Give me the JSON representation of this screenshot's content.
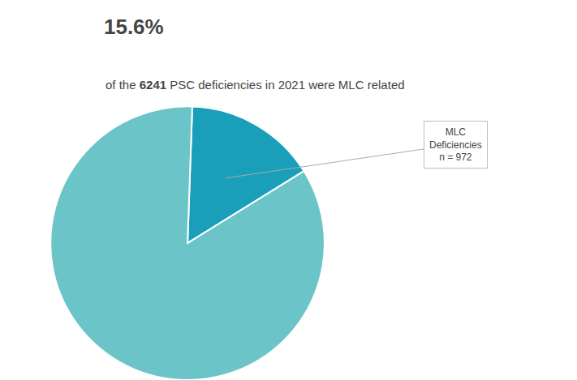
{
  "chart_data": {
    "type": "pie",
    "title": "15.6%",
    "subtitle": "of the 6241 PSC deficiencies in 2021 were MLC related",
    "values": [
      15.6,
      84.4
    ],
    "colors": [
      "#1a9fba",
      "#6bc5c8"
    ],
    "annotations": [
      "MLC\nDeficiencies\nn = 972"
    ],
    "legend": false,
    "data_labels": false
  }
}
